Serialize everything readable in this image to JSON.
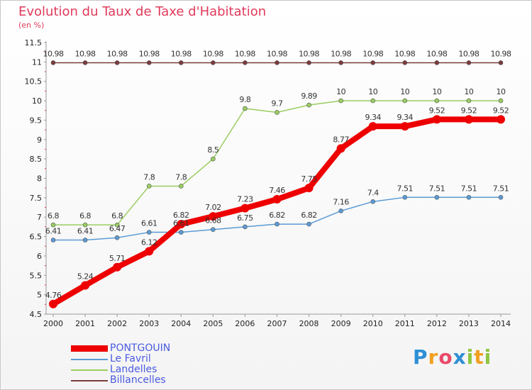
{
  "title": "Evolution du Taux de Taxe d'Habitation",
  "subtitle": "(en %)",
  "logo": {
    "text": "Proxiti",
    "letters": [
      "P",
      "r",
      "o",
      "x",
      "i",
      "t",
      "i"
    ],
    "colors": [
      "#2e8fd6",
      "#f0a020",
      "#e84a6a",
      "#2e8fd6",
      "#8dc63f",
      "#f0a020",
      "#8dc63f"
    ]
  },
  "chart_data": {
    "type": "line",
    "title": "Evolution du Taux de Taxe d'Habitation",
    "ylabel": "(en %)",
    "xlabel": "",
    "ylim": [
      4.5,
      11.5
    ],
    "yticks": [
      "4.5",
      "5",
      "5.5",
      "6",
      "6.5",
      "7",
      "7.5",
      "8",
      "8.5",
      "9",
      "9.5",
      "10",
      "10.5",
      "11",
      "11.5"
    ],
    "x": [
      "2000",
      "2001",
      "2002",
      "2003",
      "2004",
      "2005",
      "2006",
      "2007",
      "2008",
      "2009",
      "2010",
      "2011",
      "2012",
      "2013",
      "2014"
    ],
    "grid": false,
    "legend_position": "bottom-left",
    "series": [
      {
        "name": "PONTGOUIN",
        "color": "#ee0000",
        "labels_above": true,
        "values": [
          4.76,
          5.24,
          5.71,
          6.12,
          6.82,
          7.02,
          7.23,
          7.46,
          7.75,
          8.77,
          9.34,
          9.34,
          9.52,
          9.52,
          9.52
        ],
        "labels": [
          "4.76",
          "5.24",
          "5.71",
          "6.12",
          "6.82",
          "7.02",
          "7.23",
          "7.46",
          "7.75",
          "8.77",
          "9.34",
          "9.34",
          "9.52",
          "9.52",
          "9.52"
        ]
      },
      {
        "name": "Le Favril",
        "color": "#5b9bd5",
        "labels_above": true,
        "values": [
          6.41,
          6.41,
          6.47,
          6.61,
          6.61,
          6.68,
          6.75,
          6.82,
          6.82,
          7.16,
          7.4,
          7.51,
          7.51,
          7.51,
          7.51
        ],
        "labels": [
          "6.41",
          "6.41",
          "6.47",
          "6.61",
          "6.61",
          "6.68",
          "6.75",
          "6.82",
          "6.82",
          "7.16",
          "7.4",
          "7.51",
          "7.51",
          "7.51",
          "7.51"
        ]
      },
      {
        "name": "Landelles",
        "color": "#9acd60",
        "labels_above": true,
        "values": [
          6.8,
          6.8,
          6.8,
          7.8,
          7.8,
          8.5,
          9.8,
          9.7,
          9.89,
          10,
          10,
          10,
          10,
          10,
          10
        ],
        "labels": [
          "6.8",
          "6.8",
          "6.8",
          "7.8",
          "7.8",
          "8.5",
          "9.8",
          "9.7",
          "9.89",
          "10",
          "10",
          "10",
          "10",
          "10",
          "10"
        ]
      },
      {
        "name": "Billancelles",
        "color": "#7a3b3b",
        "labels_above": true,
        "values": [
          10.98,
          10.98,
          10.98,
          10.98,
          10.98,
          10.98,
          10.98,
          10.98,
          10.98,
          10.98,
          10.98,
          10.98,
          10.98,
          10.98,
          10.98
        ],
        "labels": [
          "10.98",
          "10.98",
          "10.98",
          "10.98",
          "10.98",
          "10.98",
          "10.98",
          "10.98",
          "10.98",
          "10.98",
          "10.98",
          "10.98",
          "10.98",
          "10.98",
          "10.98"
        ]
      }
    ]
  }
}
